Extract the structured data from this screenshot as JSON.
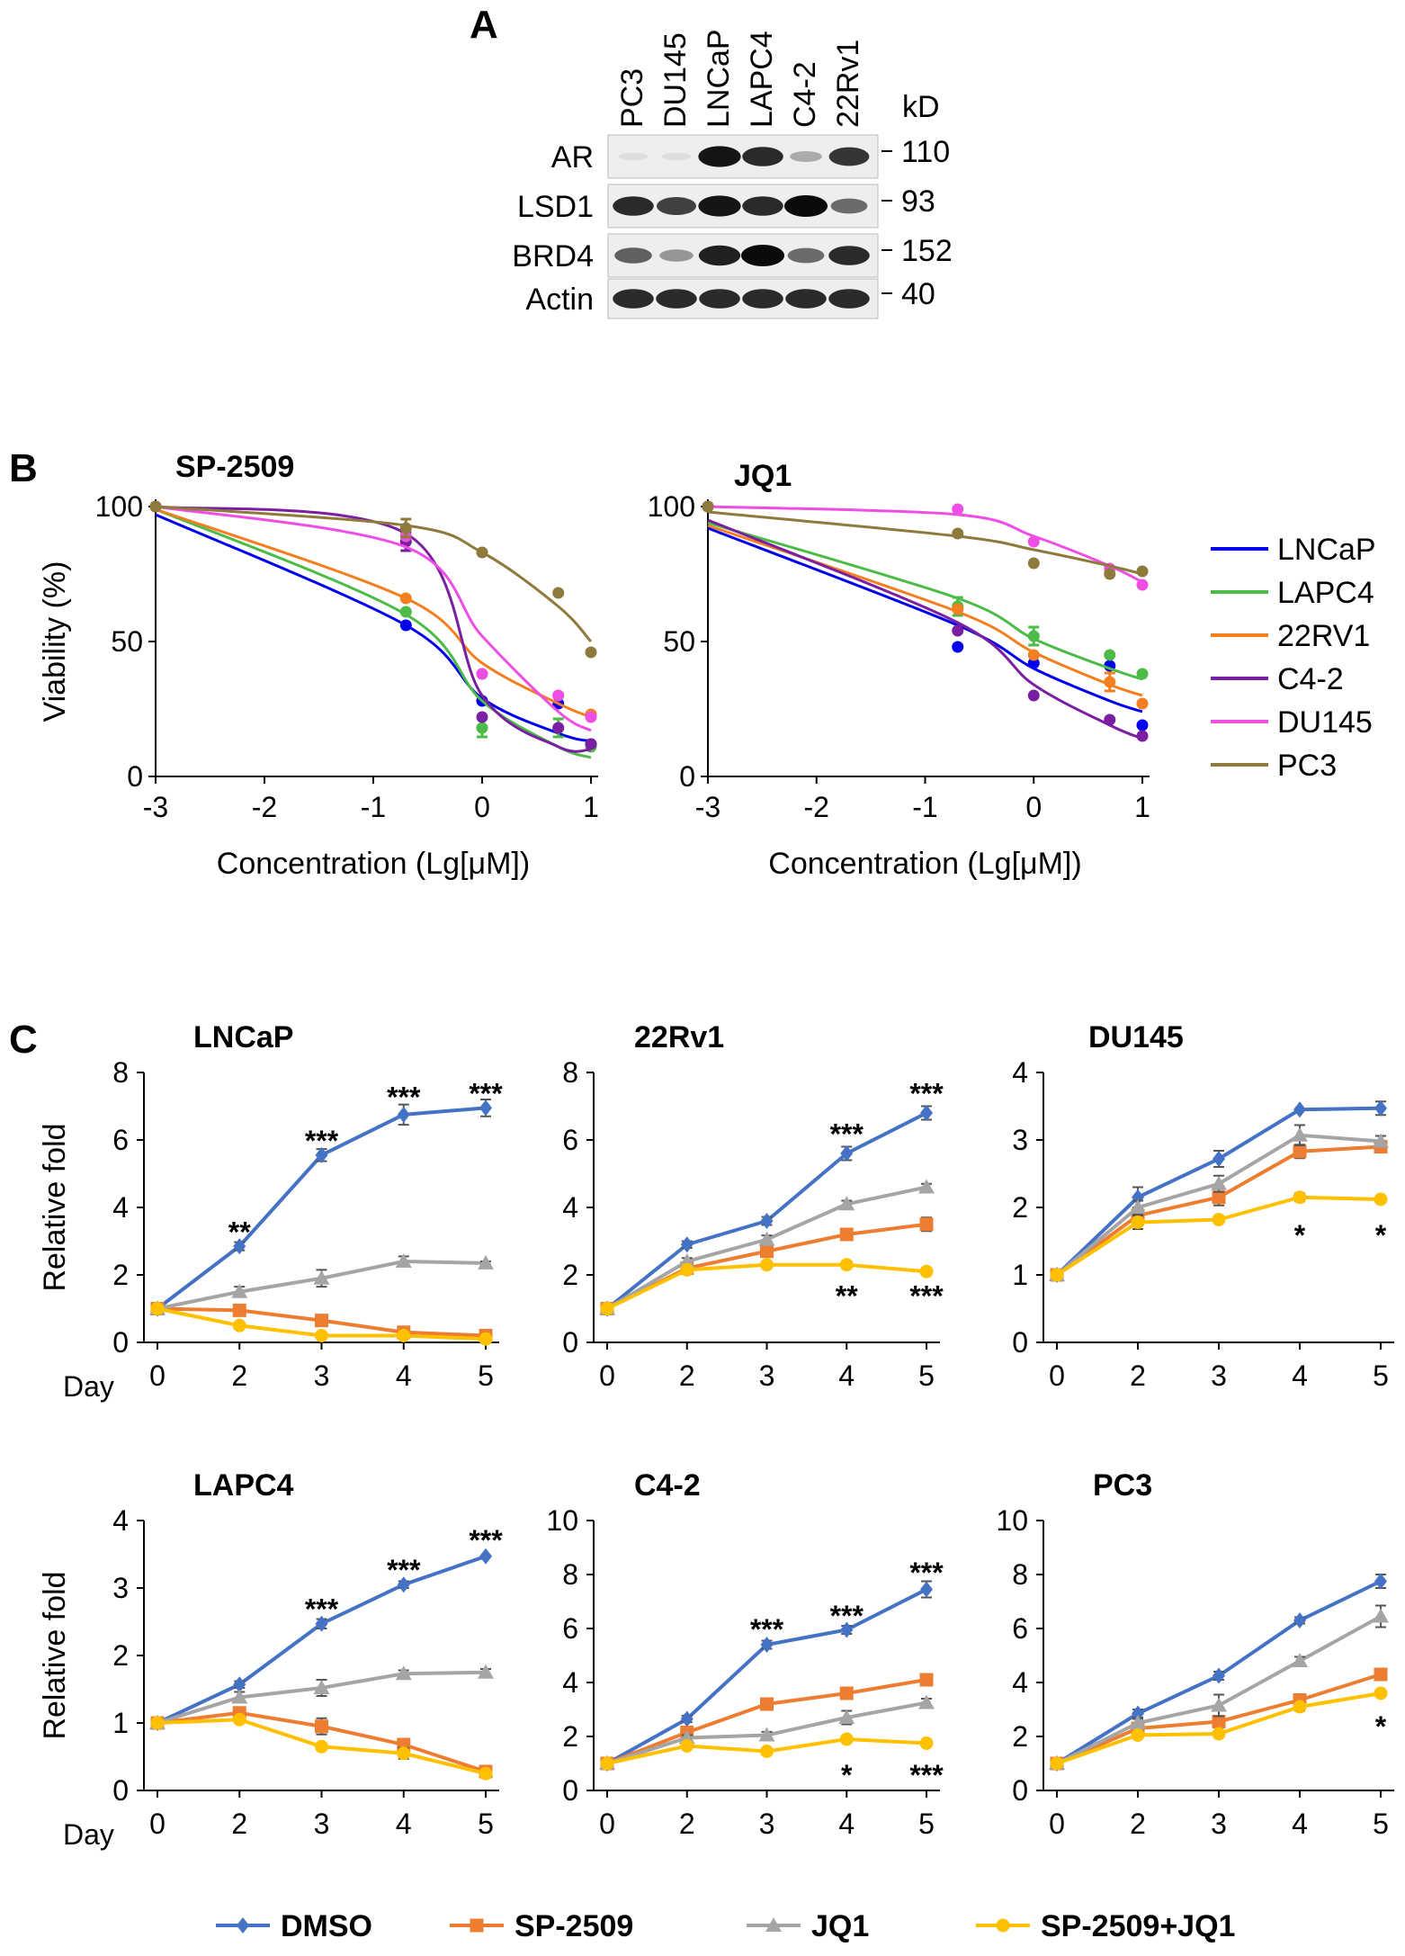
{
  "panel_a": {
    "letter": "A",
    "lanes": [
      "PC3",
      "DU145",
      "LNCaP",
      "LAPC4",
      "C4-2",
      "22Rv1"
    ],
    "kd_header": "kD",
    "rows": [
      {
        "label": "AR",
        "kd": "110",
        "intensities": [
          0.02,
          0.02,
          0.95,
          0.85,
          0.25,
          0.8
        ]
      },
      {
        "label": "LSD1",
        "kd": "93",
        "intensities": [
          0.85,
          0.75,
          0.95,
          0.85,
          1.0,
          0.55
        ]
      },
      {
        "label": "BRD4",
        "kd": "152",
        "intensities": [
          0.6,
          0.35,
          0.9,
          1.0,
          0.55,
          0.85
        ]
      },
      {
        "label": "Actin",
        "kd": "40",
        "intensities": [
          0.85,
          0.85,
          0.85,
          0.85,
          0.85,
          0.85
        ]
      }
    ]
  },
  "panel_b": {
    "letter": "B",
    "legend": [
      {
        "name": "LNCaP",
        "color": "#0000ee"
      },
      {
        "name": "LAPC4",
        "color": "#4cbb47"
      },
      {
        "name": "22RV1",
        "color": "#f47f20"
      },
      {
        "name": "C4-2",
        "color": "#7b1fa2"
      },
      {
        "name": "DU145",
        "color": "#ef4ee4"
      },
      {
        "name": "PC3",
        "color": "#8e7a3a"
      }
    ]
  },
  "panel_c": {
    "letter": "C",
    "legend": [
      {
        "name": "DMSO",
        "color": "#4472c4",
        "marker": "diamond"
      },
      {
        "name": "SP-2509",
        "color": "#ed7d31",
        "marker": "square"
      },
      {
        "name": "JQ1",
        "color": "#a5a5a5",
        "marker": "triangle"
      },
      {
        "name": "SP-2509+JQ1",
        "color": "#ffc000",
        "marker": "circle"
      }
    ]
  },
  "chart_data": [
    {
      "type": "scatter",
      "title": "SP-2509",
      "xlabel": "Concentration (Lg[μM])",
      "ylabel": "Viability (%)",
      "xlim": [
        -3,
        1
      ],
      "ylim": [
        0,
        100
      ],
      "xticks": [
        "-3",
        "-2",
        "-1",
        "0",
        "1"
      ],
      "yticks": [
        "0",
        "50",
        "100"
      ],
      "x": [
        -3,
        -0.7,
        0,
        0.7,
        1
      ],
      "series": [
        {
          "name": "LNCaP",
          "color": "#0000ee",
          "points": [
            100,
            56,
            28,
            27,
            12
          ],
          "fit": [
            97,
            56,
            29,
            16,
            13
          ]
        },
        {
          "name": "LAPC4",
          "color": "#4cbb47",
          "points": [
            100,
            61,
            18,
            18,
            11
          ],
          "fit": [
            99,
            60,
            28,
            11,
            7
          ]
        },
        {
          "name": "22RV1",
          "color": "#f47f20",
          "points": [
            100,
            66,
            38,
            30,
            23
          ],
          "fit": [
            99,
            66,
            42,
            27,
            22
          ]
        },
        {
          "name": "C4-2",
          "color": "#7b1fa2",
          "points": [
            100,
            87,
            22,
            18,
            12
          ],
          "fit": [
            100,
            90,
            30,
            11,
            10
          ]
        },
        {
          "name": "DU145",
          "color": "#ef4ee4",
          "points": [
            100,
            89,
            38,
            30,
            22
          ],
          "fit": [
            100,
            85,
            52,
            24,
            17
          ]
        },
        {
          "name": "PC3",
          "color": "#8e7a3a",
          "points": [
            100,
            92,
            83,
            68,
            46
          ],
          "fit": [
            100,
            93,
            83,
            63,
            50
          ]
        }
      ],
      "error_points": [
        [
          "LAPC4",
          3
        ],
        [
          "C4-2",
          1
        ],
        [
          "PC3",
          1
        ],
        [
          "LAPC4",
          2
        ]
      ]
    },
    {
      "type": "scatter",
      "title": "JQ1",
      "xlabel": "Concentration (Lg[μM])",
      "ylabel": "",
      "xlim": [
        -3,
        1
      ],
      "ylim": [
        0,
        100
      ],
      "xticks": [
        "-3",
        "-2",
        "-1",
        "0",
        "1"
      ],
      "yticks": [
        "0",
        "50",
        "100"
      ],
      "x": [
        -3,
        -0.7,
        0,
        0.7,
        1
      ],
      "series": [
        {
          "name": "LNCaP",
          "color": "#0000ee",
          "points": [
            100,
            48,
            42,
            41,
            19
          ],
          "fit": [
            92,
            56,
            40,
            28,
            24
          ]
        },
        {
          "name": "LAPC4",
          "color": "#4cbb47",
          "points": [
            100,
            63,
            52,
            45,
            38
          ],
          "fit": [
            94,
            66,
            51,
            40,
            36
          ]
        },
        {
          "name": "22RV1",
          "color": "#f47f20",
          "points": [
            100,
            62,
            45,
            35,
            27
          ],
          "fit": [
            93,
            61,
            46,
            34,
            30
          ]
        },
        {
          "name": "C4-2",
          "color": "#7b1fa2",
          "points": [
            100,
            54,
            30,
            21,
            15
          ],
          "fit": [
            95,
            57,
            34,
            19,
            14
          ]
        },
        {
          "name": "DU145",
          "color": "#ef4ee4",
          "points": [
            100,
            99,
            87,
            77,
            71
          ],
          "fit": [
            100,
            97,
            89,
            78,
            72
          ]
        },
        {
          "name": "PC3",
          "color": "#8e7a3a",
          "points": [
            100,
            90,
            79,
            75,
            76
          ],
          "fit": [
            98,
            89,
            84,
            78,
            75
          ]
        }
      ],
      "error_points": [
        [
          "LAPC4",
          1
        ],
        [
          "LAPC4",
          2
        ],
        [
          "22RV1",
          3
        ]
      ]
    },
    {
      "type": "line",
      "title": "LNCaP",
      "xlabel": "Day",
      "ylabel": "Relative fold",
      "x": [
        "0",
        "2",
        "3",
        "4",
        "5"
      ],
      "ylim": [
        0,
        8
      ],
      "yticks": [
        "0",
        "2",
        "4",
        "6",
        "8"
      ],
      "series": [
        {
          "name": "DMSO",
          "values": [
            1,
            2.85,
            5.55,
            6.75,
            6.95
          ],
          "err": [
            0.05,
            0.12,
            0.18,
            0.3,
            0.25
          ]
        },
        {
          "name": "SP-2509",
          "values": [
            1,
            0.95,
            0.65,
            0.3,
            0.2
          ],
          "err": [
            0.05,
            0.05,
            0.08,
            0.05,
            0.05
          ]
        },
        {
          "name": "JQ1",
          "values": [
            1,
            1.5,
            1.9,
            2.4,
            2.35
          ],
          "err": [
            0.05,
            0.15,
            0.25,
            0.15,
            0.05
          ]
        },
        {
          "name": "SP-2509+JQ1",
          "values": [
            1,
            0.5,
            0.2,
            0.2,
            0.1
          ],
          "err": [
            0.05,
            0.05,
            0.03,
            0.03,
            0.03
          ]
        }
      ],
      "annotations": [
        {
          "x": "2",
          "y": 3.3,
          "text": "**"
        },
        {
          "x": "3",
          "y": 6.0,
          "text": "***"
        },
        {
          "x": "4",
          "y": 7.3,
          "text": "***"
        },
        {
          "x": "5",
          "y": 7.4,
          "text": "***"
        }
      ]
    },
    {
      "type": "line",
      "title": "22Rv1",
      "xlabel": "",
      "ylabel": "",
      "x": [
        "0",
        "2",
        "3",
        "4",
        "5"
      ],
      "ylim": [
        0,
        8
      ],
      "yticks": [
        "0",
        "2",
        "4",
        "6",
        "8"
      ],
      "series": [
        {
          "name": "DMSO",
          "values": [
            1,
            2.9,
            3.6,
            5.6,
            6.8
          ],
          "err": [
            0.05,
            0.1,
            0.12,
            0.2,
            0.2
          ]
        },
        {
          "name": "SP-2509",
          "values": [
            1,
            2.2,
            2.7,
            3.2,
            3.5
          ],
          "err": [
            0.05,
            0.1,
            0.15,
            0.1,
            0.2
          ]
        },
        {
          "name": "JQ1",
          "values": [
            1,
            2.4,
            3.05,
            4.1,
            4.6
          ],
          "err": [
            0.05,
            0.1,
            0.12,
            0.1,
            0.1
          ]
        },
        {
          "name": "SP-2509+JQ1",
          "values": [
            1,
            2.15,
            2.3,
            2.3,
            2.1
          ],
          "err": [
            0.05,
            0.1,
            0.1,
            0.1,
            0.05
          ]
        }
      ],
      "annotations": [
        {
          "x": "4",
          "y": 6.2,
          "text": "***"
        },
        {
          "x": "5",
          "y": 7.4,
          "text": "***"
        },
        {
          "x": "4",
          "y": 1.4,
          "text": "**"
        },
        {
          "x": "5",
          "y": 1.4,
          "text": "***"
        }
      ]
    },
    {
      "type": "line",
      "title": "DU145",
      "xlabel": "",
      "ylabel": "",
      "x": [
        "0",
        "2",
        "3",
        "4",
        "5"
      ],
      "ylim": [
        0,
        4
      ],
      "yticks": [
        "0",
        "1",
        "2",
        "3",
        "4"
      ],
      "series": [
        {
          "name": "DMSO",
          "values": [
            1,
            2.15,
            2.72,
            3.45,
            3.47
          ],
          "err": [
            0.03,
            0.15,
            0.12,
            0.03,
            0.1
          ]
        },
        {
          "name": "SP-2509",
          "values": [
            1,
            1.88,
            2.15,
            2.83,
            2.9
          ],
          "err": [
            0.03,
            0.1,
            0.12,
            0.1,
            0.08
          ]
        },
        {
          "name": "JQ1",
          "values": [
            1,
            2.0,
            2.35,
            3.07,
            2.98
          ],
          "err": [
            0.03,
            0.1,
            0.12,
            0.15,
            0.08
          ]
        },
        {
          "name": "SP-2509+JQ1",
          "values": [
            1,
            1.78,
            1.82,
            2.15,
            2.12
          ],
          "err": [
            0.03,
            0.1,
            0.05,
            0.06,
            0.03
          ]
        }
      ],
      "annotations": [
        {
          "x": "4",
          "y": 1.6,
          "text": "*"
        },
        {
          "x": "5",
          "y": 1.6,
          "text": "*"
        }
      ]
    },
    {
      "type": "line",
      "title": "LAPC4",
      "xlabel": "Day",
      "ylabel": "Relative fold",
      "x": [
        "0",
        "2",
        "3",
        "4",
        "5"
      ],
      "ylim": [
        0,
        4
      ],
      "yticks": [
        "0",
        "1",
        "2",
        "3",
        "4"
      ],
      "series": [
        {
          "name": "DMSO",
          "values": [
            1,
            1.57,
            2.47,
            3.05,
            3.47
          ],
          "err": [
            0.03,
            0.05,
            0.07,
            0.05,
            0.03
          ]
        },
        {
          "name": "SP-2509",
          "values": [
            1,
            1.15,
            0.95,
            0.68,
            0.28
          ],
          "err": [
            0.03,
            0.08,
            0.12,
            0.05,
            0.05
          ]
        },
        {
          "name": "JQ1",
          "values": [
            1,
            1.38,
            1.52,
            1.73,
            1.75
          ],
          "err": [
            0.03,
            0.08,
            0.12,
            0.05,
            0.05
          ]
        },
        {
          "name": "SP-2509+JQ1",
          "values": [
            1,
            1.05,
            0.65,
            0.55,
            0.25
          ],
          "err": [
            0.03,
            0.05,
            0.05,
            0.08,
            0.05
          ]
        }
      ],
      "annotations": [
        {
          "x": "3",
          "y": 2.7,
          "text": "***"
        },
        {
          "x": "4",
          "y": 3.28,
          "text": "***"
        },
        {
          "x": "5",
          "y": 3.72,
          "text": "***"
        }
      ]
    },
    {
      "type": "line",
      "title": "C4-2",
      "xlabel": "",
      "ylabel": "",
      "x": [
        "0",
        "2",
        "3",
        "4",
        "5"
      ],
      "ylim": [
        0,
        10
      ],
      "yticks": [
        "0",
        "2",
        "4",
        "6",
        "8",
        "10"
      ],
      "series": [
        {
          "name": "DMSO",
          "values": [
            1,
            2.65,
            5.4,
            5.95,
            7.45
          ],
          "err": [
            0.05,
            0.12,
            0.15,
            0.15,
            0.3
          ]
        },
        {
          "name": "SP-2509",
          "values": [
            1,
            2.15,
            3.2,
            3.6,
            4.1
          ],
          "err": [
            0.05,
            0.1,
            0.15,
            0.15,
            0.15
          ]
        },
        {
          "name": "JQ1",
          "values": [
            1,
            1.95,
            2.05,
            2.7,
            3.25
          ],
          "err": [
            0.05,
            0.1,
            0.12,
            0.25,
            0.15
          ]
        },
        {
          "name": "SP-2509+JQ1",
          "values": [
            1,
            1.65,
            1.45,
            1.9,
            1.75
          ],
          "err": [
            0.05,
            0.05,
            0.05,
            0.1,
            0.05
          ]
        }
      ],
      "annotations": [
        {
          "x": "3",
          "y": 6.0,
          "text": "***"
        },
        {
          "x": "4",
          "y": 6.5,
          "text": "***"
        },
        {
          "x": "5",
          "y": 8.1,
          "text": "***"
        },
        {
          "x": "4",
          "y": 0.6,
          "text": "*"
        },
        {
          "x": "5",
          "y": 0.6,
          "text": "***"
        }
      ]
    },
    {
      "type": "line",
      "title": "PC3",
      "xlabel": "",
      "ylabel": "",
      "x": [
        "0",
        "2",
        "3",
        "4",
        "5"
      ],
      "ylim": [
        0,
        10
      ],
      "yticks": [
        "0",
        "2",
        "4",
        "6",
        "8",
        "10"
      ],
      "series": [
        {
          "name": "DMSO",
          "values": [
            1,
            2.85,
            4.25,
            6.3,
            7.75
          ],
          "err": [
            0.05,
            0.15,
            0.15,
            0.12,
            0.25
          ]
        },
        {
          "name": "SP-2509",
          "values": [
            1,
            2.3,
            2.55,
            3.35,
            4.3
          ],
          "err": [
            0.05,
            0.15,
            0.2,
            0.15,
            0.2
          ]
        },
        {
          "name": "JQ1",
          "values": [
            1,
            2.5,
            3.15,
            4.8,
            6.45
          ],
          "err": [
            0.05,
            0.15,
            0.4,
            0.15,
            0.4
          ]
        },
        {
          "name": "SP-2509+JQ1",
          "values": [
            1,
            2.05,
            2.1,
            3.1,
            3.6
          ],
          "err": [
            0.05,
            0.1,
            0.1,
            0.15,
            0.1
          ]
        }
      ],
      "annotations": [
        {
          "x": "5",
          "y": 2.4,
          "text": "*"
        }
      ]
    }
  ]
}
